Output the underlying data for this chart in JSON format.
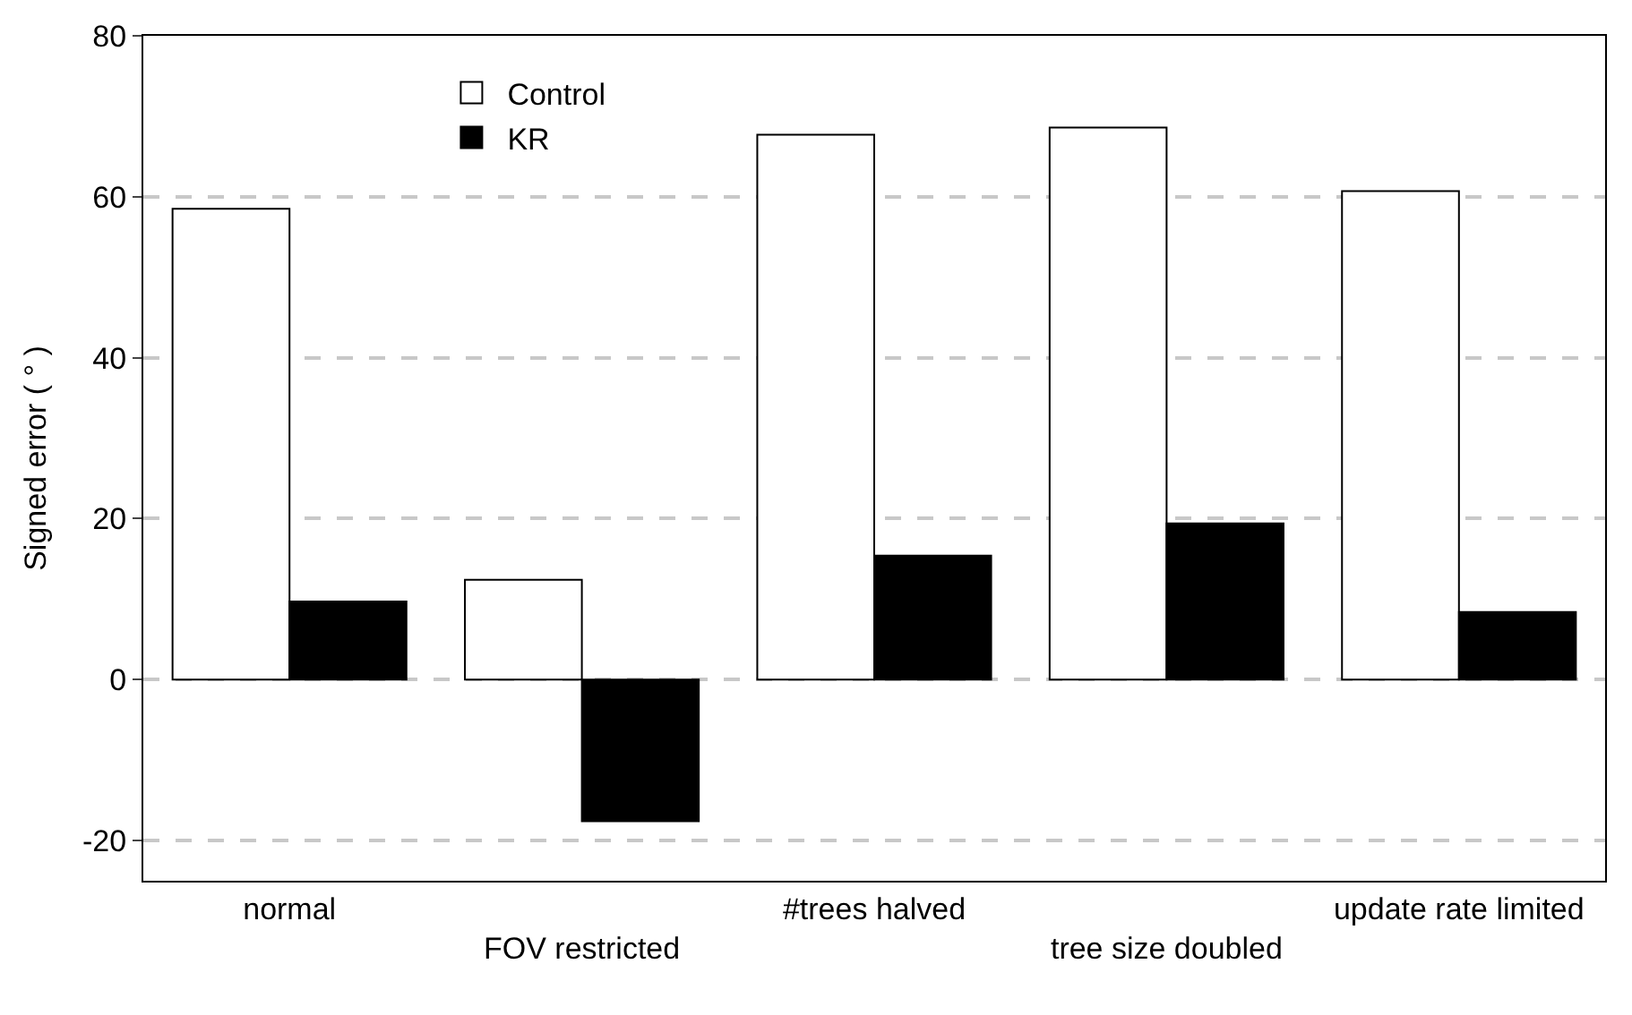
{
  "chart_data": {
    "type": "bar",
    "ylabel": "Signed error ( ° )",
    "categories": [
      "normal",
      "FOV restricted",
      "#trees halved",
      "tree size doubled",
      "update rate limited"
    ],
    "series": [
      {
        "name": "Control",
        "color": "#ffffff",
        "values": [
          58.5,
          12.4,
          67.7,
          68.6,
          60.7
        ]
      },
      {
        "name": "KR",
        "color": "#000000",
        "values": [
          9.7,
          -17.6,
          15.4,
          19.4,
          8.4
        ]
      }
    ],
    "ylim": [
      -25,
      80
    ],
    "yticks": [
      -20,
      0,
      20,
      40,
      60,
      80
    ],
    "grid": "y",
    "legend": "top left"
  }
}
